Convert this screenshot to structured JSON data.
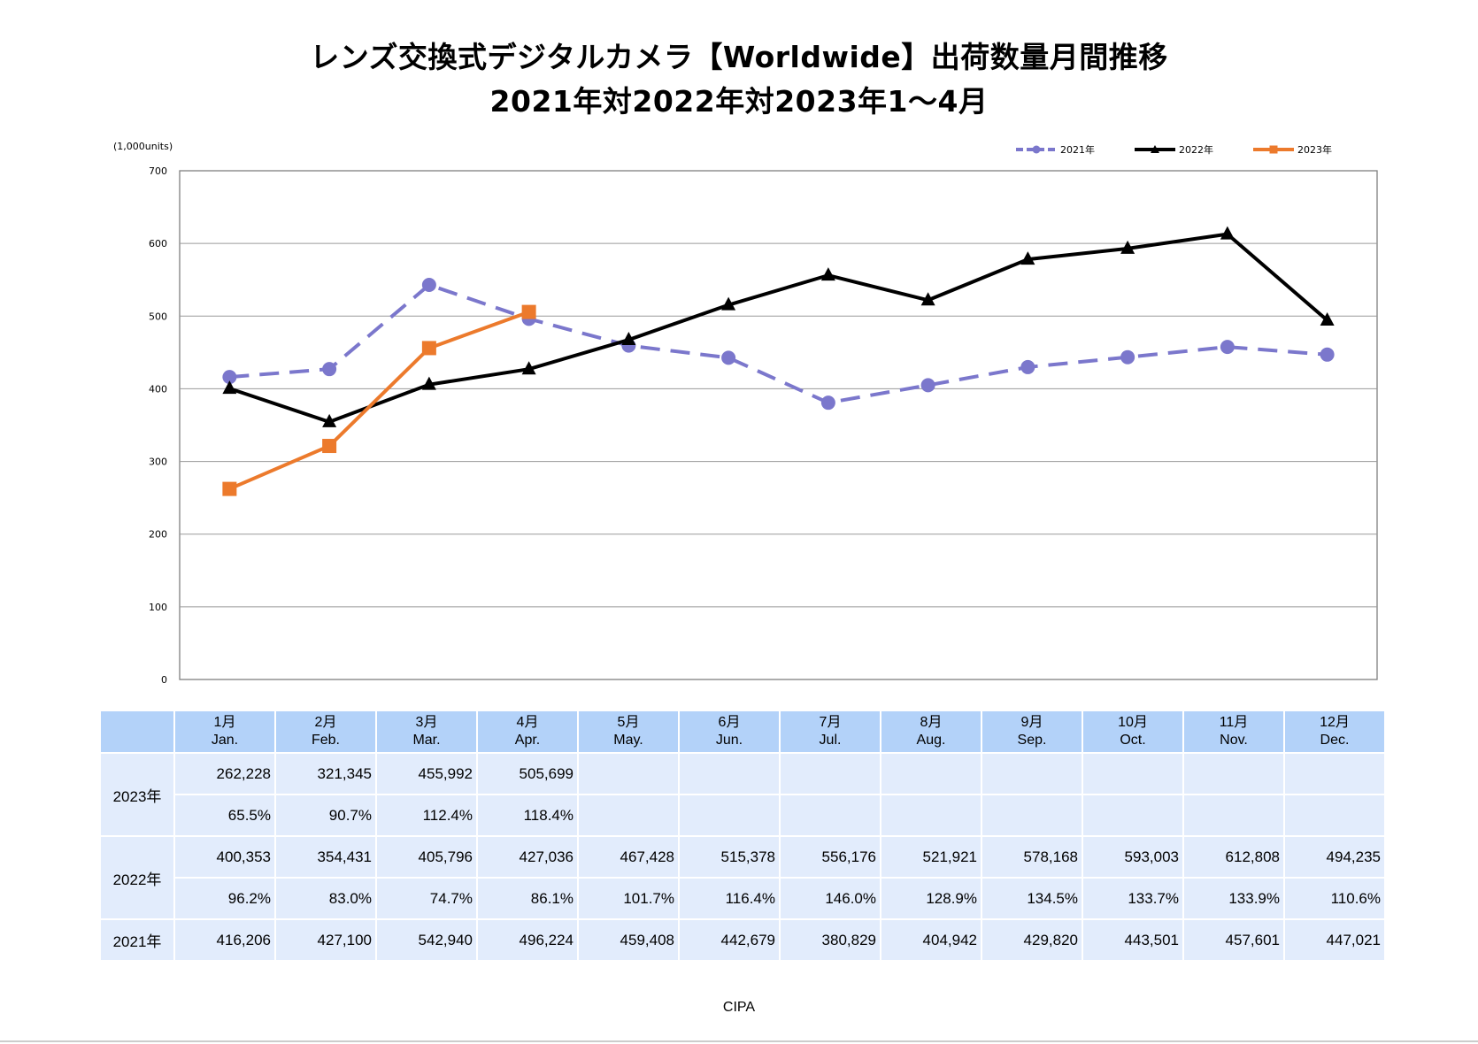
{
  "title_line1": "レンズ交換式デジタルカメラ【Worldwide】出荷数量月間推移",
  "title_line2": "2021年対2022年対2023年1～4月",
  "source": "CIPA",
  "colors": {
    "s2021": "#7b77cc",
    "s2022": "#000000",
    "s2023": "#ec7a2c",
    "header_bg": "#b3d2f9",
    "row_bg": "#e2ecfc"
  },
  "chart_data": {
    "type": "line",
    "unit_label": "(1,000units)",
    "ylim": [
      0,
      700
    ],
    "yticks": [
      0,
      100,
      200,
      300,
      400,
      500,
      600,
      700
    ],
    "grid": true,
    "legend_position": "top-right",
    "categories_jp": [
      "1月",
      "2月",
      "3月",
      "4月",
      "5月",
      "6月",
      "7月",
      "8月",
      "9月",
      "10月",
      "11月",
      "12月"
    ],
    "categories_en": [
      "Jan.",
      "Feb.",
      "Mar.",
      "Apr.",
      "May.",
      "Jun.",
      "Jul.",
      "Aug.",
      "Sep.",
      "Oct.",
      "Nov.",
      "Dec."
    ],
    "series": [
      {
        "name": "2021年",
        "marker": "circle",
        "dashed": true,
        "values": [
          416.206,
          427.1,
          542.94,
          496.224,
          459.408,
          442.679,
          380.829,
          404.942,
          429.82,
          443.501,
          457.601,
          447.021
        ]
      },
      {
        "name": "2022年",
        "marker": "triangle",
        "dashed": false,
        "values": [
          400.353,
          354.431,
          405.796,
          427.036,
          467.428,
          515.378,
          556.176,
          521.921,
          578.168,
          593.003,
          612.808,
          494.235
        ]
      },
      {
        "name": "2023年",
        "marker": "square",
        "dashed": false,
        "values": [
          262.228,
          321.345,
          455.992,
          505.699
        ]
      }
    ]
  },
  "table": {
    "headers": [
      {
        "jp": "1月",
        "en": "Jan."
      },
      {
        "jp": "2月",
        "en": "Feb."
      },
      {
        "jp": "3月",
        "en": "Mar."
      },
      {
        "jp": "4月",
        "en": "Apr."
      },
      {
        "jp": "5月",
        "en": "May."
      },
      {
        "jp": "6月",
        "en": "Jun."
      },
      {
        "jp": "7月",
        "en": "Jul."
      },
      {
        "jp": "8月",
        "en": "Aug."
      },
      {
        "jp": "9月",
        "en": "Sep."
      },
      {
        "jp": "10月",
        "en": "Oct."
      },
      {
        "jp": "11月",
        "en": "Nov."
      },
      {
        "jp": "12月",
        "en": "Dec."
      }
    ],
    "rows": [
      {
        "year": "2023年",
        "units": [
          "262,228",
          "321,345",
          "455,992",
          "505,699",
          "",
          "",
          "",
          "",
          "",
          "",
          "",
          ""
        ],
        "ratio": [
          "65.5%",
          "90.7%",
          "112.4%",
          "118.4%",
          "",
          "",
          "",
          "",
          "",
          "",
          "",
          ""
        ]
      },
      {
        "year": "2022年",
        "units": [
          "400,353",
          "354,431",
          "405,796",
          "427,036",
          "467,428",
          "515,378",
          "556,176",
          "521,921",
          "578,168",
          "593,003",
          "612,808",
          "494,235"
        ],
        "ratio": [
          "96.2%",
          "83.0%",
          "74.7%",
          "86.1%",
          "101.7%",
          "116.4%",
          "146.0%",
          "128.9%",
          "134.5%",
          "133.7%",
          "133.9%",
          "110.6%"
        ]
      },
      {
        "year": "2021年",
        "units": [
          "416,206",
          "427,100",
          "542,940",
          "496,224",
          "459,408",
          "442,679",
          "380,829",
          "404,942",
          "429,820",
          "443,501",
          "457,601",
          "447,021"
        ]
      }
    ]
  }
}
